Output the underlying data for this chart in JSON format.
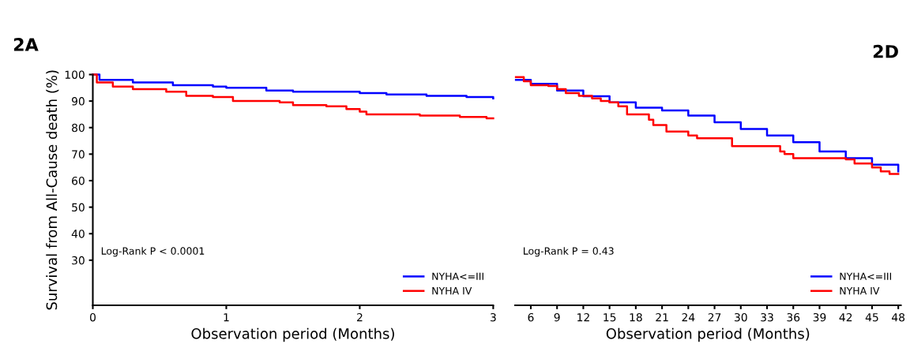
{
  "chart_data": [
    {
      "type": "step",
      "title": "2A",
      "xlabel": "Observation period (Months)",
      "ylabel": "Survival from All-Cause death (%)",
      "xlim": [
        0,
        3
      ],
      "xticks": [
        0,
        1,
        2,
        3
      ],
      "ylim": [
        13,
        100
      ],
      "yticks": [
        30,
        40,
        50,
        60,
        70,
        80,
        90,
        100
      ],
      "legend": "bottom right",
      "grid": false,
      "annotations": [
        "Log-Rank P < 0.0001"
      ],
      "series": [
        {
          "name": "NYHA<=III",
          "color": "#0000ff",
          "x": [
            0,
            0.05,
            0.3,
            0.6,
            0.9,
            1.0,
            1.3,
            1.5,
            2.0,
            2.2,
            2.5,
            2.8,
            3.0
          ],
          "values": [
            100,
            98,
            97,
            96,
            95.5,
            95,
            94,
            93.5,
            93,
            92.5,
            92,
            91.5,
            91
          ]
        },
        {
          "name": "NYHA IV",
          "color": "#ff0000",
          "x": [
            0,
            0.03,
            0.15,
            0.3,
            0.55,
            0.7,
            0.9,
            1.05,
            1.4,
            1.5,
            1.75,
            1.9,
            2.0,
            2.05,
            2.45,
            2.75,
            2.95,
            3.0
          ],
          "values": [
            100,
            97,
            95.5,
            94.5,
            93.5,
            92,
            91.5,
            90,
            89.5,
            88.5,
            88,
            87,
            86,
            85,
            84.5,
            84,
            83.5,
            83.5
          ]
        }
      ]
    },
    {
      "type": "step",
      "title": "2D",
      "xlabel": "Observation period (Months)",
      "xlim": [
        4.2,
        48.3
      ],
      "xticks": [
        6,
        9,
        12,
        15,
        18,
        21,
        24,
        27,
        30,
        33,
        36,
        39,
        42,
        45,
        48
      ],
      "ylim": [
        13,
        100
      ],
      "tick_labels": "x",
      "legend": "bottom right",
      "grid": false,
      "annotations": [
        "Log-Rank P = 0.43"
      ],
      "series": [
        {
          "name": "NYHA<=III",
          "color": "#0000ff",
          "x": [
            4.3,
            6,
            9,
            12,
            15,
            18,
            21,
            24,
            27,
            30,
            33,
            36,
            39,
            42,
            45,
            48
          ],
          "values": [
            98,
            96.5,
            94,
            91.8,
            89.5,
            87.5,
            86.5,
            84.5,
            82,
            79.5,
            77,
            74.5,
            71,
            68.5,
            66,
            63.5
          ]
        },
        {
          "name": "NYHA IV",
          "color": "#ff0000",
          "x": [
            4.3,
            5.2,
            6,
            8,
            9,
            10,
            11.5,
            13,
            14,
            15,
            16,
            17,
            19,
            19.5,
            20,
            21.5,
            24,
            25,
            29,
            34.5,
            35,
            36,
            42,
            43,
            45,
            46,
            47,
            48
          ],
          "values": [
            99,
            97.5,
            96,
            95.7,
            94.5,
            93,
            92,
            91,
            90,
            89.5,
            88,
            85,
            85,
            83,
            81,
            78.5,
            77,
            76,
            73,
            71,
            70,
            68.5,
            68,
            66.5,
            65,
            63.5,
            62.5,
            62.5
          ]
        }
      ]
    }
  ]
}
